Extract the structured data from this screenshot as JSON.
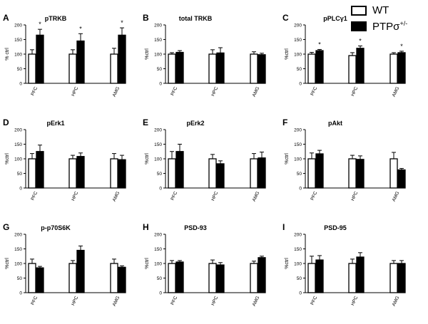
{
  "legend": {
    "wt_label": "WT",
    "ptp_label_base": "PTPσ",
    "ptp_label_sup": "+/-",
    "colors": {
      "wt_fill": "#ffffff",
      "ptp_fill": "#000000",
      "stroke": "#000000"
    }
  },
  "chart_data": [
    {
      "type": "bar",
      "panel": "A",
      "title": "pTRKB",
      "ylabel": "% ctrl",
      "ylim": [
        0,
        200
      ],
      "yticks": [
        0,
        50,
        100,
        150,
        200
      ],
      "categories": [
        "PFC",
        "HPC",
        "AMG"
      ],
      "series": [
        {
          "name": "WT",
          "values": [
            100,
            100,
            100
          ],
          "errors": [
            15,
            15,
            20
          ]
        },
        {
          "name": "PTPσ+/-",
          "values": [
            165,
            145,
            165
          ],
          "errors": [
            20,
            25,
            25
          ]
        }
      ],
      "significance": [
        "*",
        "*",
        "*"
      ]
    },
    {
      "type": "bar",
      "panel": "B",
      "title": "total TRKB",
      "ylabel": "%ctrl",
      "ylim": [
        0,
        200
      ],
      "yticks": [
        0,
        50,
        100,
        150,
        200
      ],
      "categories": [
        "PFC",
        "HPC",
        "AMG"
      ],
      "series": [
        {
          "name": "WT",
          "values": [
            100,
            100,
            100
          ],
          "errors": [
            5,
            15,
            8
          ]
        },
        {
          "name": "PTPσ+/-",
          "values": [
            106,
            104,
            98
          ],
          "errors": [
            6,
            18,
            5
          ]
        }
      ],
      "significance": [
        "",
        "",
        ""
      ]
    },
    {
      "type": "bar",
      "panel": "C",
      "title": "pPLCγ1",
      "ylabel": "%ctrl",
      "ylim": [
        0,
        200
      ],
      "yticks": [
        0,
        50,
        100,
        150,
        200
      ],
      "categories": [
        "PFC",
        "HPC",
        "AMG"
      ],
      "series": [
        {
          "name": "WT",
          "values": [
            100,
            95,
            100
          ],
          "errors": [
            6,
            10,
            5
          ]
        },
        {
          "name": "PTPσ+/-",
          "values": [
            112,
            120,
            105
          ],
          "errors": [
            4,
            8,
            5
          ]
        }
      ],
      "significance": [
        "*",
        "*",
        "*"
      ]
    },
    {
      "type": "bar",
      "panel": "D",
      "title": "pErk1",
      "ylabel": "%ctrl",
      "ylim": [
        0,
        200
      ],
      "yticks": [
        0,
        50,
        100,
        150,
        200
      ],
      "categories": [
        "PFC",
        "HPC",
        "AMG"
      ],
      "series": [
        {
          "name": "WT",
          "values": [
            100,
            100,
            100
          ],
          "errors": [
            18,
            12,
            18
          ]
        },
        {
          "name": "PTPσ+/-",
          "values": [
            125,
            108,
            97
          ],
          "errors": [
            22,
            12,
            15
          ]
        }
      ],
      "significance": [
        "",
        "",
        ""
      ]
    },
    {
      "type": "bar",
      "panel": "E",
      "title": "pErk2",
      "ylabel": "%ctrl",
      "ylim": [
        0,
        200
      ],
      "yticks": [
        0,
        50,
        100,
        150,
        200
      ],
      "categories": [
        "PFC",
        "HPC",
        "AMG"
      ],
      "series": [
        {
          "name": "WT",
          "values": [
            100,
            100,
            100
          ],
          "errors": [
            25,
            15,
            18
          ]
        },
        {
          "name": "PTPσ+/-",
          "values": [
            125,
            83,
            103
          ],
          "errors": [
            25,
            10,
            20
          ]
        }
      ],
      "significance": [
        "",
        "",
        ""
      ]
    },
    {
      "type": "bar",
      "panel": "F",
      "title": "pAkt",
      "ylabel": "%ctrl",
      "ylim": [
        0,
        200
      ],
      "yticks": [
        0,
        50,
        100,
        150,
        200
      ],
      "categories": [
        "PFC",
        "HPC",
        "AMG"
      ],
      "series": [
        {
          "name": "WT",
          "values": [
            100,
            100,
            100
          ],
          "errors": [
            20,
            12,
            22
          ]
        },
        {
          "name": "PTPσ+/-",
          "values": [
            117,
            98,
            62
          ],
          "errors": [
            12,
            12,
            5
          ]
        }
      ],
      "significance": [
        "",
        "",
        ""
      ]
    },
    {
      "type": "bar",
      "panel": "G",
      "title": "p-p70S6K",
      "ylabel": "%ctrl",
      "ylim": [
        0,
        200
      ],
      "yticks": [
        0,
        50,
        100,
        150,
        200
      ],
      "categories": [
        "PFC",
        "HPC",
        "AMG"
      ],
      "series": [
        {
          "name": "WT",
          "values": [
            100,
            100,
            100
          ],
          "errors": [
            15,
            10,
            15
          ]
        },
        {
          "name": "PTPσ+/-",
          "values": [
            85,
            145,
            87
          ],
          "errors": [
            5,
            15,
            5
          ]
        }
      ],
      "significance": [
        "",
        "",
        ""
      ]
    },
    {
      "type": "bar",
      "panel": "H",
      "title": "PSD-93",
      "ylabel": "%ctrl",
      "ylim": [
        0,
        200
      ],
      "yticks": [
        0,
        50,
        100,
        150,
        200
      ],
      "categories": [
        "PFC",
        "HPC",
        "AMG"
      ],
      "series": [
        {
          "name": "WT",
          "values": [
            100,
            100,
            100
          ],
          "errors": [
            10,
            12,
            8
          ]
        },
        {
          "name": "PTPσ+/-",
          "values": [
            105,
            95,
            120
          ],
          "errors": [
            5,
            8,
            5
          ]
        }
      ],
      "significance": [
        "",
        "",
        ""
      ]
    },
    {
      "type": "bar",
      "panel": "I",
      "title": "PSD-95",
      "ylabel": "%ctrl",
      "ylim": [
        0,
        200
      ],
      "yticks": [
        0,
        50,
        100,
        150,
        200
      ],
      "categories": [
        "PFC",
        "HPC",
        "AMG"
      ],
      "series": [
        {
          "name": "WT",
          "values": [
            100,
            100,
            100
          ],
          "errors": [
            25,
            15,
            10
          ]
        },
        {
          "name": "PTPσ+/-",
          "values": [
            112,
            122,
            100
          ],
          "errors": [
            15,
            15,
            10
          ]
        }
      ],
      "significance": [
        "",
        "",
        ""
      ]
    }
  ]
}
